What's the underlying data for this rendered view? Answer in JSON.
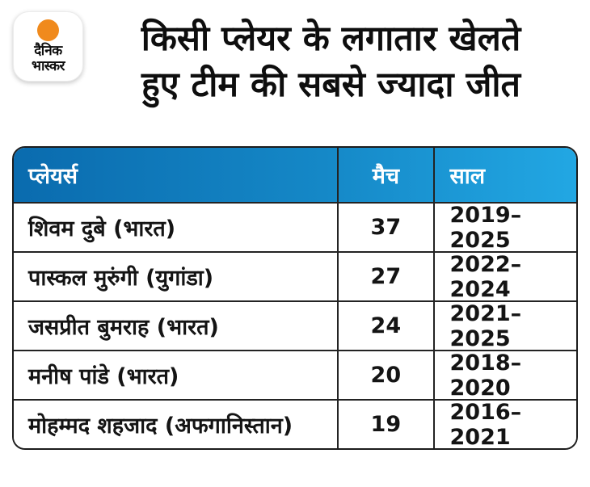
{
  "logo": {
    "line1": "दैनिक",
    "line2": "भास्कर",
    "sun_color": "#F08A1D"
  },
  "title": {
    "line1": "किसी प्लेयर के लगातार खेलते",
    "line2": "हुए टीम की सबसे ज्यादा जीत"
  },
  "table": {
    "headers": {
      "player": "प्लेयर्स",
      "matches": "मैच",
      "years": "साल"
    },
    "rows": [
      {
        "player": "शिवम दुबे (भारत)",
        "matches": "37",
        "years": "2019–2025"
      },
      {
        "player": "पास्कल मुरुंगी (युगांडा)",
        "matches": "27",
        "years": "2022–2024"
      },
      {
        "player": "जसप्रीत बुमराह (भारत)",
        "matches": "24",
        "years": "2021–2025"
      },
      {
        "player": "मनीष पांडे (भारत)",
        "matches": "20",
        "years": "2018–2020"
      },
      {
        "player": "मोहम्मद शहजाद (अफगानिस्तान)",
        "matches": "19",
        "years": "2016–2021"
      }
    ]
  },
  "colors": {
    "header_gradient_start": "#0a6bae",
    "header_gradient_end": "#22a7e3",
    "border": "#232323",
    "text": "#141414",
    "header_text": "#ffffff",
    "logo_sun": "#F08A1D",
    "background": "#ffffff"
  },
  "chart_data": {
    "type": "table",
    "title": "किसी प्लेयर के लगातार खेलते हुए टीम की सबसे ज्यादा जीत",
    "columns": [
      "प्लेयर्स",
      "मैच",
      "साल"
    ],
    "rows": [
      [
        "शिवम दुबे (भारत)",
        37,
        "2019–2025"
      ],
      [
        "पास्कल मुरुंगी (युगांडा)",
        27,
        "2022–2024"
      ],
      [
        "जसप्रीत बुमराह (भारत)",
        24,
        "2021–2025"
      ],
      [
        "मनीष पांडे (भारत)",
        20,
        "2018–2020"
      ],
      [
        "मोहम्मद शहजाद (अफगानिस्तान)",
        19,
        "2016–2021"
      ]
    ]
  }
}
